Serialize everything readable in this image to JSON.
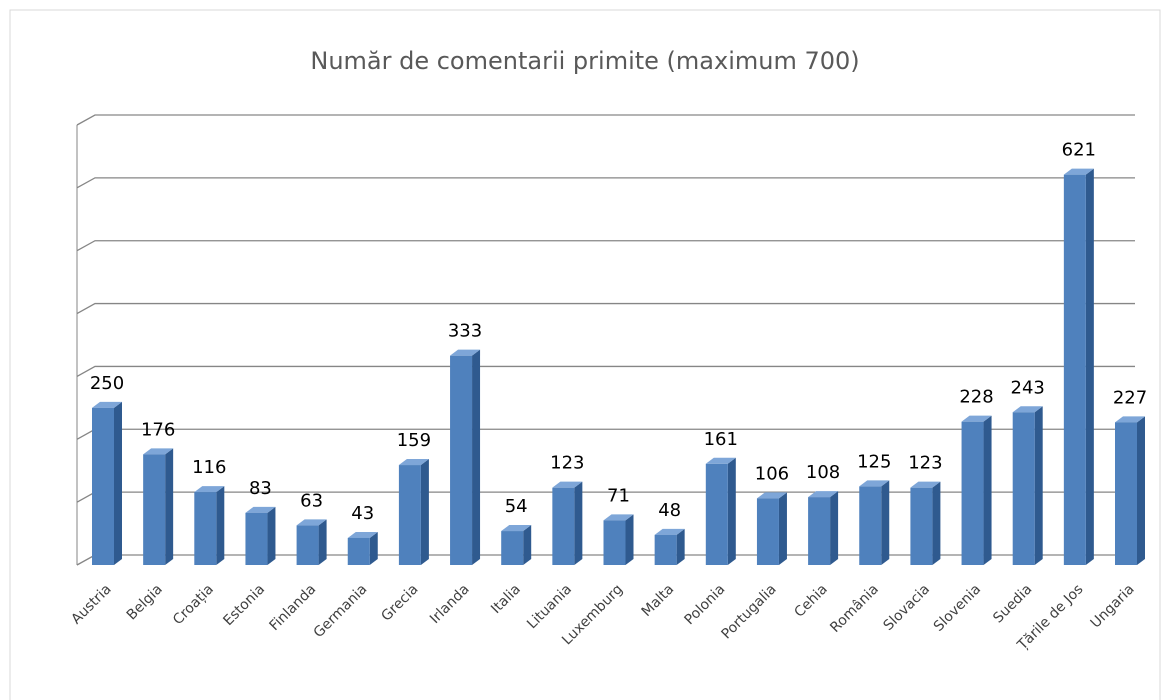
{
  "chart_data": {
    "type": "bar3d",
    "title": "Număr de comentarii primite (maximum 700)",
    "categories": [
      "Austria",
      "Belgia",
      "Croația",
      "Estonia",
      "Finlanda",
      "Germania",
      "Grecia",
      "Irlanda",
      "Italia",
      "Lituania",
      "Luxemburg",
      "Malta",
      "Polonia",
      "Portugalia",
      "Cehia",
      "România",
      "Slovacia",
      "Slovenia",
      "Suedia",
      "Țările de Jos",
      "Ungaria"
    ],
    "values": [
      250,
      176,
      116,
      83,
      63,
      43,
      159,
      333,
      54,
      123,
      71,
      48,
      161,
      106,
      108,
      125,
      123,
      228,
      243,
      621,
      227
    ],
    "color": "#4f81bd",
    "ylim": [
      0,
      700
    ],
    "yticks": [
      0,
      100,
      200,
      300,
      400,
      500,
      600,
      700
    ],
    "grid": true
  }
}
